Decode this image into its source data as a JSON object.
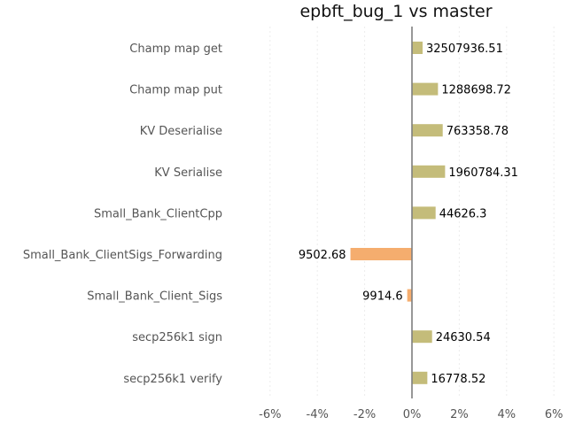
{
  "chart_data": {
    "type": "bar",
    "orientation": "horizontal",
    "title": "epbft_bug_1 vs master",
    "xlabel": "",
    "ylabel": "",
    "xlim": [
      -6.5,
      6.5
    ],
    "x_ticks": [
      -6,
      -4,
      -2,
      0,
      2,
      4,
      6
    ],
    "x_tick_labels": [
      "-6%",
      "-4%",
      "-2%",
      "0%",
      "2%",
      "4%",
      "6%"
    ],
    "grid": true,
    "positive_color": "#c4bc7a",
    "negative_color": "#f5ad6e",
    "categories": [
      "Champ map get",
      "Champ map put",
      "KV Deserialise",
      "KV Serialise",
      "Small_Bank_ClientCpp",
      "Small_Bank_ClientSigs_Forwarding",
      "Small_Bank_Client_Sigs",
      "secp256k1 sign",
      "secp256k1 verify"
    ],
    "values": [
      0.45,
      1.1,
      1.3,
      1.4,
      1.0,
      -2.6,
      -0.2,
      0.85,
      0.65
    ],
    "data_labels": [
      "32507936.51",
      "1288698.72",
      "763358.78",
      "1960784.31",
      "44626.3",
      "9502.68",
      "9914.6",
      "24630.54",
      "16778.52"
    ]
  }
}
